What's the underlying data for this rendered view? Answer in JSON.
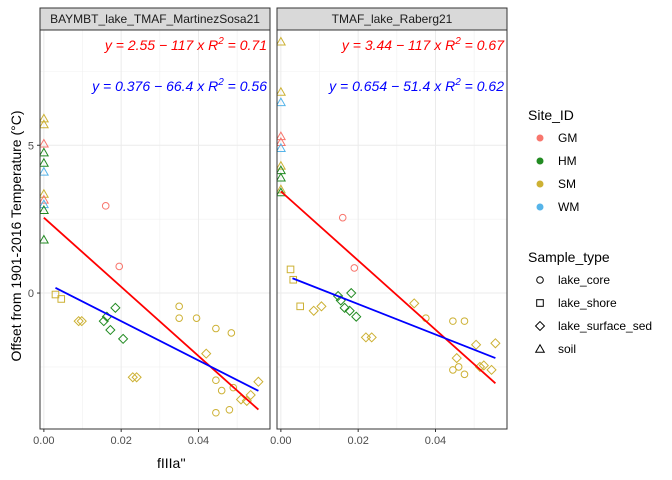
{
  "chart_data": {
    "type": "scatter",
    "xlabel": "fIIIa''",
    "ylabel": "Offset from 1901-2016 Temperature (°C)",
    "xlim": [
      -0.001,
      0.0585
    ],
    "ylim": [
      -4.6,
      8.9
    ],
    "x_ticks": [
      0.0,
      0.02,
      0.04
    ],
    "x_tick_labels": [
      "0.00",
      "0.02",
      "0.04"
    ],
    "y_ticks": [
      0,
      5
    ],
    "y_tick_labels": [
      "0",
      "5"
    ],
    "grid": true,
    "legend_position": "right",
    "colors": {
      "GM": "#F8766D",
      "HM": "#228B22",
      "SM": "#CDB134",
      "WM": "#56B4E9",
      "fit_red": "#FF0000",
      "fit_blue": "#0000FF"
    },
    "legends": [
      {
        "title": "Site_ID",
        "kind": "color",
        "entries": [
          {
            "label": "GM",
            "color": "#F8766D"
          },
          {
            "label": "HM",
            "color": "#228B22"
          },
          {
            "label": "SM",
            "color": "#CDB134"
          },
          {
            "label": "WM",
            "color": "#56B4E9"
          }
        ]
      },
      {
        "title": "Sample_type",
        "kind": "shape",
        "entries": [
          {
            "label": "lake_core",
            "shape": "circle"
          },
          {
            "label": "lake_shore",
            "shape": "square"
          },
          {
            "label": "lake_surface_sed",
            "shape": "diamond"
          },
          {
            "label": "soil",
            "shape": "triangle"
          }
        ]
      }
    ],
    "panels": [
      {
        "strip": "BAYMBT_lake_TMAF_MartinezSosa21",
        "fits": [
          {
            "color": "fit_red",
            "intercept": 2.55,
            "slope": -117,
            "x_range": [
              0.0,
              0.0555
            ],
            "label": "y = 2.55 − 117 x",
            "r2": "0.71"
          },
          {
            "color": "fit_blue",
            "intercept": 0.376,
            "slope": -66.4,
            "x_range": [
              0.003,
              0.0555
            ],
            "label": "y = 0.376 − 66.4 x",
            "r2": "0.56"
          }
        ],
        "points": [
          {
            "x": 0.0,
            "y": 5.9,
            "shape": "triangle",
            "site": "SM"
          },
          {
            "x": 0.0,
            "y": 5.7,
            "shape": "triangle",
            "site": "SM"
          },
          {
            "x": 0.0,
            "y": 5.05,
            "shape": "triangle",
            "site": "GM"
          },
          {
            "x": 0.0,
            "y": 4.75,
            "shape": "triangle",
            "site": "HM"
          },
          {
            "x": 0.0,
            "y": 4.4,
            "shape": "triangle",
            "site": "HM"
          },
          {
            "x": 0.0,
            "y": 4.1,
            "shape": "triangle",
            "site": "WM"
          },
          {
            "x": 0.0,
            "y": 3.35,
            "shape": "triangle",
            "site": "SM"
          },
          {
            "x": 0.0,
            "y": 3.15,
            "shape": "triangle",
            "site": "GM"
          },
          {
            "x": 0.0,
            "y": 3.0,
            "shape": "triangle",
            "site": "WM"
          },
          {
            "x": 0.0,
            "y": 2.8,
            "shape": "triangle",
            "site": "HM"
          },
          {
            "x": 0.0,
            "y": 1.8,
            "shape": "triangle",
            "site": "HM"
          },
          {
            "x": 0.016,
            "y": 2.95,
            "shape": "circle",
            "site": "GM"
          },
          {
            "x": 0.0195,
            "y": 0.9,
            "shape": "circle",
            "site": "GM"
          },
          {
            "x": 0.003,
            "y": -0.05,
            "shape": "square",
            "site": "SM"
          },
          {
            "x": 0.0045,
            "y": -0.2,
            "shape": "square",
            "site": "SM"
          },
          {
            "x": 0.009,
            "y": -0.95,
            "shape": "diamond",
            "site": "SM"
          },
          {
            "x": 0.0098,
            "y": -0.95,
            "shape": "diamond",
            "site": "SM"
          },
          {
            "x": 0.0155,
            "y": -0.95,
            "shape": "diamond",
            "site": "HM"
          },
          {
            "x": 0.0163,
            "y": -0.8,
            "shape": "diamond",
            "site": "HM"
          },
          {
            "x": 0.0172,
            "y": -1.25,
            "shape": "diamond",
            "site": "HM"
          },
          {
            "x": 0.0185,
            "y": -0.5,
            "shape": "diamond",
            "site": "HM"
          },
          {
            "x": 0.0205,
            "y": -1.55,
            "shape": "diamond",
            "site": "HM"
          },
          {
            "x": 0.023,
            "y": -2.85,
            "shape": "diamond",
            "site": "SM"
          },
          {
            "x": 0.024,
            "y": -2.85,
            "shape": "diamond",
            "site": "SM"
          },
          {
            "x": 0.035,
            "y": -0.45,
            "shape": "circle",
            "site": "SM"
          },
          {
            "x": 0.035,
            "y": -0.85,
            "shape": "circle",
            "site": "SM"
          },
          {
            "x": 0.0395,
            "y": -0.85,
            "shape": "circle",
            "site": "SM"
          },
          {
            "x": 0.0445,
            "y": -1.2,
            "shape": "circle",
            "site": "SM"
          },
          {
            "x": 0.0485,
            "y": -1.35,
            "shape": "circle",
            "site": "SM"
          },
          {
            "x": 0.042,
            "y": -2.05,
            "shape": "diamond",
            "site": "SM"
          },
          {
            "x": 0.0445,
            "y": -2.95,
            "shape": "circle",
            "site": "SM"
          },
          {
            "x": 0.046,
            "y": -3.3,
            "shape": "circle",
            "site": "SM"
          },
          {
            "x": 0.0445,
            "y": -4.05,
            "shape": "circle",
            "site": "SM"
          },
          {
            "x": 0.048,
            "y": -3.95,
            "shape": "circle",
            "site": "SM"
          },
          {
            "x": 0.049,
            "y": -3.2,
            "shape": "circle",
            "site": "SM"
          },
          {
            "x": 0.051,
            "y": -3.6,
            "shape": "diamond",
            "site": "SM"
          },
          {
            "x": 0.0525,
            "y": -3.65,
            "shape": "diamond",
            "site": "SM"
          },
          {
            "x": 0.0535,
            "y": -3.45,
            "shape": "diamond",
            "site": "SM"
          },
          {
            "x": 0.0555,
            "y": -3.0,
            "shape": "diamond",
            "site": "SM"
          }
        ]
      },
      {
        "strip": "TMAF_lake_Raberg21",
        "fits": [
          {
            "color": "fit_red",
            "intercept": 3.44,
            "slope": -117,
            "x_range": [
              0.0,
              0.0555
            ],
            "label": "y = 3.44 − 117 x",
            "r2": "0.67"
          },
          {
            "color": "fit_blue",
            "intercept": 0.654,
            "slope": -51.4,
            "x_range": [
              0.003,
              0.0555
            ],
            "label": "y = 0.654 − 51.4 x",
            "r2": "0.62"
          }
        ],
        "points": [
          {
            "x": 0.0,
            "y": 8.5,
            "shape": "triangle",
            "site": "SM"
          },
          {
            "x": 0.0,
            "y": 6.8,
            "shape": "triangle",
            "site": "SM"
          },
          {
            "x": 0.0,
            "y": 6.45,
            "shape": "triangle",
            "site": "WM"
          },
          {
            "x": 0.0,
            "y": 5.3,
            "shape": "triangle",
            "site": "GM"
          },
          {
            "x": 0.0,
            "y": 5.1,
            "shape": "triangle",
            "site": "GM"
          },
          {
            "x": 0.0,
            "y": 4.9,
            "shape": "triangle",
            "site": "WM"
          },
          {
            "x": 0.0,
            "y": 4.3,
            "shape": "triangle",
            "site": "SM"
          },
          {
            "x": 0.0,
            "y": 4.15,
            "shape": "triangle",
            "site": "HM"
          },
          {
            "x": 0.0,
            "y": 3.9,
            "shape": "triangle",
            "site": "HM"
          },
          {
            "x": 0.0,
            "y": 3.5,
            "shape": "triangle",
            "site": "SM"
          },
          {
            "x": 0.0,
            "y": 3.4,
            "shape": "triangle",
            "site": "HM"
          },
          {
            "x": 0.016,
            "y": 2.55,
            "shape": "circle",
            "site": "GM"
          },
          {
            "x": 0.019,
            "y": 0.85,
            "shape": "circle",
            "site": "GM"
          },
          {
            "x": 0.0025,
            "y": 0.8,
            "shape": "square",
            "site": "SM"
          },
          {
            "x": 0.0032,
            "y": 0.45,
            "shape": "square",
            "site": "SM"
          },
          {
            "x": 0.005,
            "y": -0.45,
            "shape": "square",
            "site": "SM"
          },
          {
            "x": 0.0085,
            "y": -0.6,
            "shape": "diamond",
            "site": "SM"
          },
          {
            "x": 0.0105,
            "y": -0.45,
            "shape": "diamond",
            "site": "SM"
          },
          {
            "x": 0.0148,
            "y": -0.1,
            "shape": "diamond",
            "site": "HM"
          },
          {
            "x": 0.0155,
            "y": -0.25,
            "shape": "diamond",
            "site": "HM"
          },
          {
            "x": 0.0165,
            "y": -0.5,
            "shape": "diamond",
            "site": "HM"
          },
          {
            "x": 0.0178,
            "y": -0.6,
            "shape": "diamond",
            "site": "HM"
          },
          {
            "x": 0.0182,
            "y": 0.0,
            "shape": "diamond",
            "site": "HM"
          },
          {
            "x": 0.0195,
            "y": -0.8,
            "shape": "diamond",
            "site": "HM"
          },
          {
            "x": 0.022,
            "y": -1.5,
            "shape": "diamond",
            "site": "SM"
          },
          {
            "x": 0.0235,
            "y": -1.5,
            "shape": "diamond",
            "site": "SM"
          },
          {
            "x": 0.0345,
            "y": -0.35,
            "shape": "diamond",
            "site": "SM"
          },
          {
            "x": 0.0375,
            "y": -0.85,
            "shape": "circle",
            "site": "SM"
          },
          {
            "x": 0.0445,
            "y": -0.95,
            "shape": "circle",
            "site": "SM"
          },
          {
            "x": 0.0475,
            "y": -0.95,
            "shape": "circle",
            "site": "SM"
          },
          {
            "x": 0.0455,
            "y": -2.2,
            "shape": "diamond",
            "site": "SM"
          },
          {
            "x": 0.0505,
            "y": -1.75,
            "shape": "diamond",
            "site": "SM"
          },
          {
            "x": 0.0445,
            "y": -2.6,
            "shape": "circle",
            "site": "SM"
          },
          {
            "x": 0.046,
            "y": -2.5,
            "shape": "circle",
            "site": "SM"
          },
          {
            "x": 0.0475,
            "y": -2.75,
            "shape": "circle",
            "site": "SM"
          },
          {
            "x": 0.0515,
            "y": -2.5,
            "shape": "diamond",
            "site": "SM"
          },
          {
            "x": 0.0525,
            "y": -2.45,
            "shape": "diamond",
            "site": "SM"
          },
          {
            "x": 0.0545,
            "y": -2.6,
            "shape": "diamond",
            "site": "SM"
          },
          {
            "x": 0.0555,
            "y": -1.7,
            "shape": "diamond",
            "site": "SM"
          }
        ]
      }
    ]
  }
}
